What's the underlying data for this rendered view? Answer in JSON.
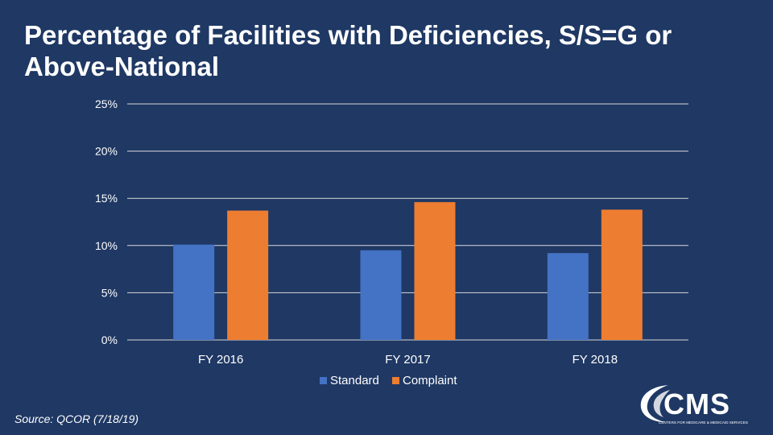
{
  "title": "Percentage of Facilities with Deficiencies, S/S=G or Above-National",
  "source": "Source: QCOR (7/18/19)",
  "logo": {
    "text": "CMS",
    "subtext": "CENTERS FOR MEDICARE & MEDICAID SERVICES"
  },
  "colors": {
    "background": "#1f3864",
    "standard": "#4472c4",
    "complaint": "#ed7d31",
    "grid": "#d9d9d9"
  },
  "chart_data": {
    "type": "bar",
    "title": "Percentage of Facilities with Deficiencies, S/S=G or Above-National",
    "categories": [
      "FY 2016",
      "FY 2017",
      "FY 2018"
    ],
    "series": [
      {
        "name": "Standard",
        "values": [
          10.1,
          9.5,
          9.2
        ]
      },
      {
        "name": "Complaint",
        "values": [
          13.7,
          14.6,
          13.8
        ]
      }
    ],
    "ylim": [
      0,
      25
    ],
    "yticks": [
      0,
      5,
      10,
      15,
      20,
      25
    ],
    "ytick_labels": [
      "0%",
      "5%",
      "10%",
      "15%",
      "20%",
      "25%"
    ],
    "xlabel": "",
    "ylabel": "",
    "legend": "bottom-center",
    "grid": true
  }
}
